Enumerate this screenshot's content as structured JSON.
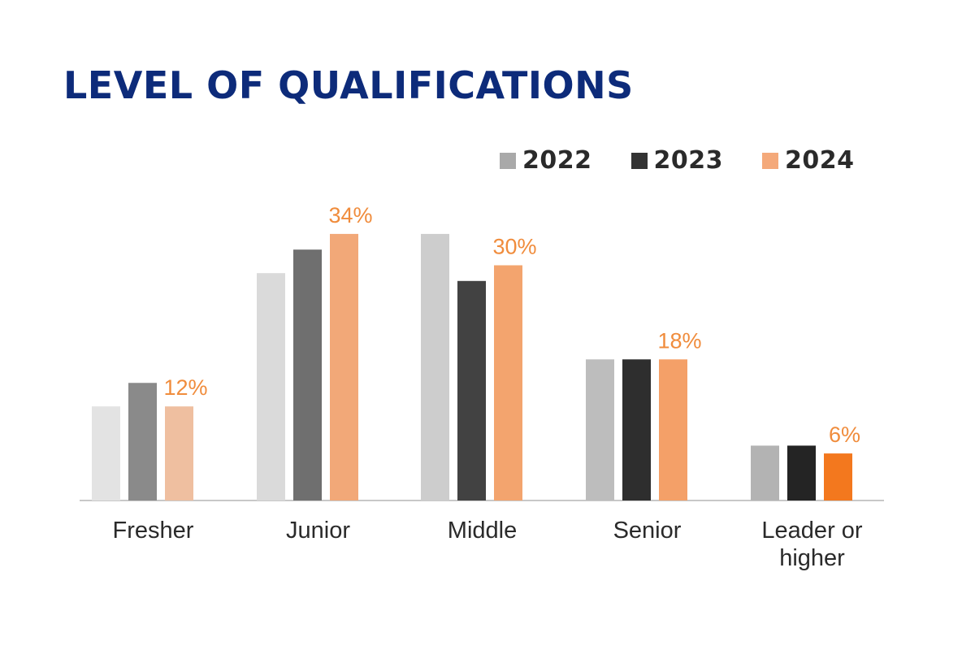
{
  "chart_data": {
    "type": "bar",
    "title": "LEVEL OF QUALIFICATIONS",
    "categories": [
      "Fresher",
      "Junior",
      "Middle",
      "Senior",
      "Leader or higher"
    ],
    "series": [
      {
        "name": "2022",
        "values": [
          12,
          29,
          34,
          18,
          7
        ]
      },
      {
        "name": "2023",
        "values": [
          15,
          32,
          28,
          18,
          7
        ]
      },
      {
        "name": "2024",
        "values": [
          12,
          34,
          30,
          18,
          6
        ]
      }
    ],
    "data_labels": {
      "series": "2024",
      "labels": [
        "12%",
        "34%",
        "30%",
        "18%",
        "6%"
      ]
    },
    "ylim": [
      0,
      40
    ],
    "grid": false,
    "legend": "top-right",
    "colors": {
      "title": "#0d2b7a",
      "data_label": "#f08c3c",
      "axis": "#c8c8c8",
      "legend": [
        "#a9a9a9",
        "#333333",
        "#f4a97a"
      ],
      "bars": [
        [
          "#e3e3e3",
          "#8a8a8a",
          "#efbfa0"
        ],
        [
          "#dadada",
          "#6f6f6f",
          "#f2a878"
        ],
        [
          "#cdcdcd",
          "#424242",
          "#f3a46e"
        ],
        [
          "#bdbdbd",
          "#2e2e2e",
          "#f4a068"
        ],
        [
          "#b3b3b3",
          "#242424",
          "#f3781e"
        ]
      ]
    }
  }
}
